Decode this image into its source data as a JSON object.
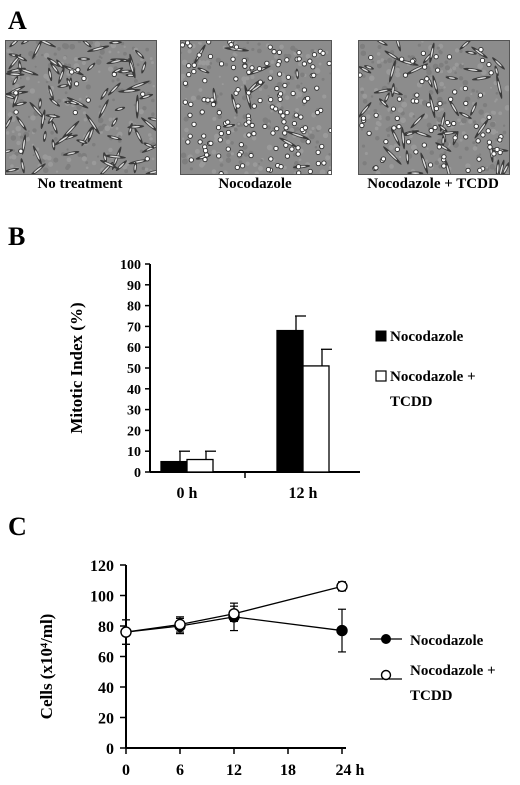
{
  "panel_a": {
    "label": "A",
    "images": [
      {
        "caption": "No treatment"
      },
      {
        "caption": "Nocodazole"
      },
      {
        "caption": "Nocodazole + TCDD"
      }
    ]
  },
  "panel_b": {
    "label": "B"
  },
  "panel_c": {
    "label": "C"
  },
  "chart_data": [
    {
      "type": "bar",
      "ylabel": "Mitotic Index (%)",
      "categories": [
        "0 h",
        "12 h"
      ],
      "ylim": [
        0,
        100
      ],
      "yticks": [
        0,
        10,
        20,
        30,
        40,
        50,
        60,
        70,
        80,
        90,
        100
      ],
      "series": [
        {
          "name": "Nocodazole",
          "fill": "#000000",
          "values": [
            5,
            68
          ],
          "errors": [
            5,
            7
          ]
        },
        {
          "name": "Nocodazole + TCDD",
          "fill": "#ffffff",
          "values": [
            6,
            51
          ],
          "errors": [
            4,
            8
          ]
        }
      ],
      "legend": [
        "Nocodazole",
        "Nocodazole +",
        "TCDD"
      ]
    },
    {
      "type": "line",
      "ylabel": "Cells (x10⁴/ml)",
      "x": [
        0,
        6,
        12,
        24
      ],
      "xticks": [
        "0",
        "6",
        "12",
        "18",
        "24 h"
      ],
      "ylim": [
        0,
        120
      ],
      "yticks": [
        0,
        20,
        40,
        60,
        80,
        100,
        120
      ],
      "series": [
        {
          "name": "Nocodazole",
          "marker": "filled",
          "values": [
            76,
            80,
            86,
            77
          ],
          "errors": [
            8,
            5,
            9,
            14
          ]
        },
        {
          "name": "Nocodazole + TCDD",
          "marker": "open",
          "values": [
            76,
            81,
            88,
            106
          ],
          "errors": [
            8,
            5,
            5,
            3
          ]
        }
      ],
      "legend": [
        "Nocodazole",
        "Nocodazole +",
        "TCDD"
      ]
    }
  ]
}
